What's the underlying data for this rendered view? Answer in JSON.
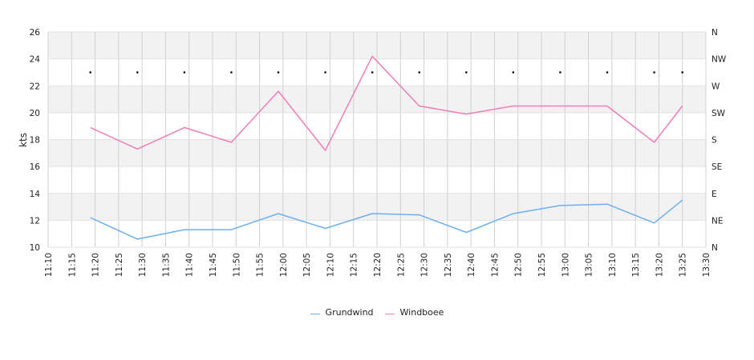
{
  "chart_data": {
    "type": "line",
    "x": [
      "11:19",
      "11:29",
      "11:39",
      "11:49",
      "11:59",
      "12:09",
      "12:19",
      "12:29",
      "12:39",
      "12:49",
      "12:59",
      "13:09",
      "13:19",
      "13:25"
    ],
    "x_ticks": [
      "11:10",
      "11:15",
      "11:20",
      "11:25",
      "11:30",
      "11:35",
      "11:40",
      "11:45",
      "11:50",
      "11:55",
      "12:00",
      "12:05",
      "12:10",
      "12:15",
      "12:20",
      "12:25",
      "12:30",
      "12:35",
      "12:40",
      "12:45",
      "12:50",
      "12:55",
      "13:00",
      "13:05",
      "13:10",
      "13:15",
      "13:20",
      "13:25",
      "13:30"
    ],
    "xlim": [
      "11:10",
      "13:30"
    ],
    "ylabel": "kts",
    "ylim": [
      10,
      26
    ],
    "y_ticks": [
      10,
      12,
      14,
      16,
      18,
      20,
      22,
      24,
      26
    ],
    "y2_ticks": [
      "N",
      "NE",
      "E",
      "SE",
      "S",
      "SW",
      "W",
      "NW",
      "N"
    ],
    "series": [
      {
        "name": "Grundwind",
        "color": "#6cb0f0",
        "values": [
          12.2,
          10.6,
          11.3,
          11.3,
          12.5,
          11.4,
          12.5,
          12.4,
          11.1,
          12.5,
          13.1,
          13.2,
          11.8,
          13.5
        ]
      },
      {
        "name": "Windboee",
        "color": "#f07eb8",
        "values": [
          18.9,
          17.3,
          18.9,
          17.8,
          21.6,
          17.2,
          24.2,
          20.5,
          19.9,
          20.5,
          20.5,
          20.5,
          17.8,
          20.5
        ]
      }
    ],
    "direction_markers": {
      "y": 23,
      "x": [
        "11:19",
        "11:29",
        "11:39",
        "11:49",
        "11:59",
        "12:09",
        "12:19",
        "12:29",
        "12:39",
        "12:49",
        "12:59",
        "13:09",
        "13:19",
        "13:25"
      ]
    },
    "bands": "alternating light-grey / white horizontal bands every 2 kts",
    "grid": true,
    "legend_position": "bottom-center"
  }
}
